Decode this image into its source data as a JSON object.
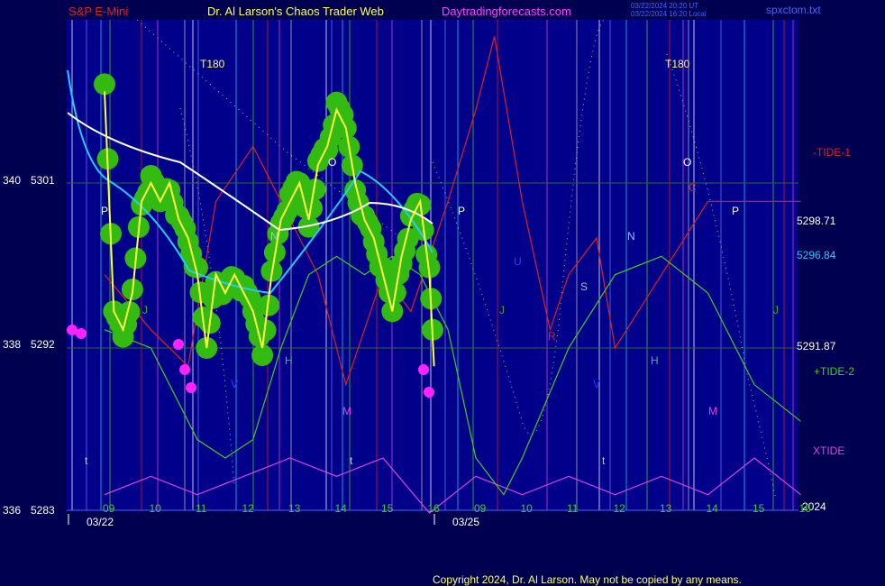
{
  "header": {
    "symbol": "S&P E-Mini",
    "site": "Dr. Al Larson's Chaos Trader Web",
    "url": "Daytradingforecasts.com",
    "timestamp1": "03/22/2024 20:20 UT",
    "timestamp2": "03/22/2024 16:20 Local",
    "file": "spxctom.txt"
  },
  "footer": {
    "copyright": "Copyright 2024, Dr. Al Larson. May not be copied by any means."
  },
  "colors": {
    "background": "#000050",
    "plot_bg": "#00008b",
    "price": "#ffff44",
    "ma_fast": "#22ccff",
    "ma_slow": "#ffffff",
    "tide1": "#dd2222",
    "tide2": "#44cc22",
    "xtide": "#dd44dd",
    "bubble": "#33bb11",
    "bubble_hot": "#ff22ff"
  },
  "chart_data": {
    "type": "line",
    "title": "S&P E-Mini",
    "y_axis": {
      "labels_left": [
        {
          "value": 5301,
          "alt": "340"
        },
        {
          "value": 5292,
          "alt": "338"
        },
        {
          "value": 5283,
          "alt": "336"
        }
      ],
      "range": [
        5283,
        5310
      ]
    },
    "x_axis": {
      "hours": [
        "09",
        "10",
        "11",
        "12",
        "13",
        "14",
        "15",
        "16",
        "09",
        "10",
        "11",
        "12",
        "13",
        "14",
        "15",
        "16"
      ],
      "dates": [
        {
          "label": "03/22"
        },
        {
          "label": "03/25"
        }
      ],
      "year": "2024"
    },
    "right_labels": {
      "tide1": "-TIDE-1",
      "tide2": "+TIDE-2",
      "xtide": "XTIDE",
      "level1": "5298.71",
      "level2": "5296.84",
      "level3": "5291.87"
    },
    "markers": [
      {
        "text": "T180",
        "color": "#ffff66"
      },
      {
        "text": "T180",
        "color": "#ffff66"
      },
      {
        "text": "P",
        "color": "#ffffff"
      },
      {
        "text": "P",
        "color": "#ffffff"
      },
      {
        "text": "P",
        "color": "#ffffff"
      },
      {
        "text": "O",
        "color": "#ffffff"
      },
      {
        "text": "O",
        "color": "#ffffff"
      },
      {
        "text": "U",
        "color": "#2244ff"
      },
      {
        "text": "S",
        "color": "#bbbbbb"
      },
      {
        "text": "N",
        "color": "#88ccff"
      },
      {
        "text": "N",
        "color": "#88ccff"
      },
      {
        "text": "R",
        "color": "#dd2222"
      },
      {
        "text": "C",
        "color": "#dd2222"
      },
      {
        "text": "H",
        "color": "#44cc22"
      },
      {
        "text": "H",
        "color": "#44cc22"
      },
      {
        "text": "M",
        "color": "#dd44dd"
      },
      {
        "text": "M",
        "color": "#dd44dd"
      },
      {
        "text": "J",
        "color": "#44aa22"
      },
      {
        "text": "J",
        "color": "#44aa22"
      },
      {
        "text": "J",
        "color": "#44aa22"
      },
      {
        "text": "V",
        "color": "#2244ff"
      },
      {
        "text": "V",
        "color": "#2244ff"
      },
      {
        "text": "t",
        "color": "#cccccc"
      },
      {
        "text": "t",
        "color": "#cccccc"
      },
      {
        "text": "t",
        "color": "#cccccc"
      }
    ],
    "series": [
      {
        "name": "Price",
        "color": "#ffff44",
        "x": [
          0,
          0.2,
          0.4,
          0.6,
          0.8,
          1,
          1.2,
          1.4,
          1.6,
          1.8,
          2,
          2.2,
          2.4,
          2.6,
          2.8,
          3,
          3.2,
          3.4,
          3.6,
          3.8,
          4,
          4.2,
          4.4,
          4.6,
          4.8,
          5,
          5.2,
          5.4,
          5.6,
          5.8,
          6,
          6.2,
          6.4,
          6.6,
          6.8,
          7,
          7.1
        ],
        "y": [
          5306,
          5294,
          5293,
          5295,
          5300,
          5301,
          5300,
          5301,
          5299,
          5298,
          5296,
          5292,
          5296,
          5295,
          5296,
          5295,
          5294,
          5292,
          5296,
          5299,
          5300,
          5301,
          5299,
          5302,
          5303,
          5305,
          5304,
          5301,
          5299,
          5298,
          5296,
          5294,
          5297,
          5299,
          5300,
          5296,
          5291
        ]
      },
      {
        "name": "-TIDE-1",
        "color": "#dd2222",
        "x": [
          0,
          1,
          1.8,
          2.4,
          3.2,
          3.8,
          4.6,
          5.2,
          6,
          6.6,
          7.4,
          8,
          8.4,
          9,
          9.6,
          10,
          10.6,
          11,
          12,
          13,
          14,
          15
        ],
        "y": [
          5296,
          5293,
          5291,
          5300,
          5303,
          5300,
          5296,
          5290,
          5296,
          5294,
          5300,
          5305,
          5309,
          5300,
          5293,
          5296,
          5298,
          5292,
          5296,
          5300,
          5300,
          5300
        ]
      },
      {
        "name": "+TIDE-2",
        "color": "#44cc22",
        "x": [
          0,
          1,
          2,
          2.6,
          3.2,
          3.8,
          4.4,
          5,
          5.6,
          6.2,
          6.8,
          7.4,
          8,
          8.6,
          9,
          10,
          11,
          12,
          13,
          14,
          15
        ],
        "y": [
          5293,
          5292,
          5287,
          5286,
          5287,
          5292,
          5296,
          5297,
          5296,
          5297,
          5296,
          5293,
          5286,
          5284,
          5286,
          5292,
          5296,
          5297,
          5295,
          5290,
          5288
        ]
      },
      {
        "name": "XTIDE",
        "color": "#dd44dd",
        "x": [
          0,
          1,
          2,
          3,
          4,
          5,
          6,
          7,
          8,
          9,
          10,
          11,
          12,
          13,
          14,
          15
        ],
        "y": [
          5284,
          5285,
          5284,
          5285,
          5286,
          5285,
          5286,
          5283,
          5285,
          5284,
          5285,
          5284,
          5285,
          5284,
          5286,
          5284
        ]
      }
    ]
  }
}
